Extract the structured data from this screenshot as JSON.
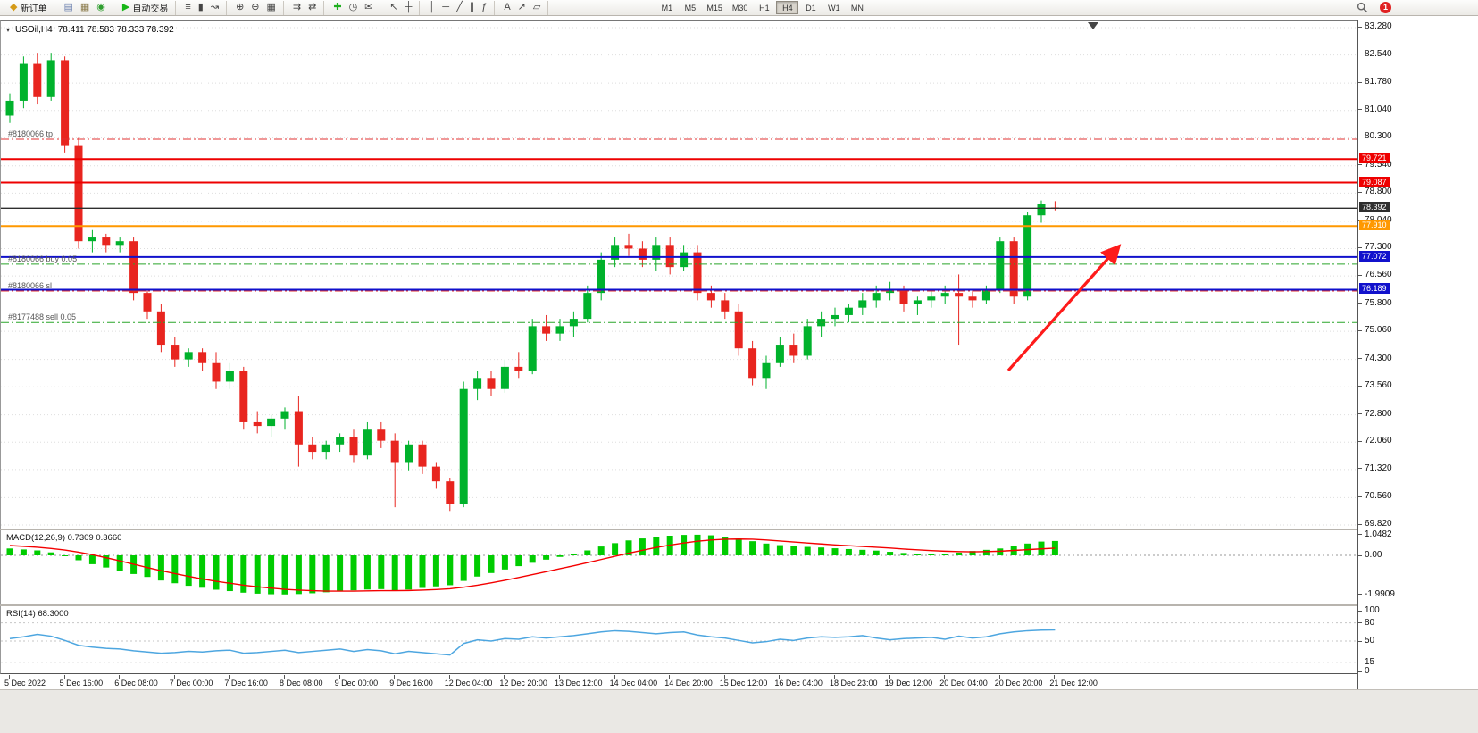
{
  "toolbar": {
    "groups": [
      {
        "items": [
          {
            "name": "new-order-button",
            "glyph": "◆",
            "glyph_color": "#d49a16",
            "label": "新订单"
          }
        ]
      },
      {
        "items": [
          {
            "name": "charts-window-button",
            "glyph": "▤",
            "glyph_color": "#6a7fae"
          },
          {
            "name": "profiles-button",
            "glyph": "▦",
            "glyph_color": "#8a7a4a"
          },
          {
            "name": "market-watch-button",
            "glyph": "◉",
            "glyph_color": "#2f9e2f"
          }
        ]
      },
      {
        "items": [
          {
            "name": "auto-trading-button",
            "glyph": "▶",
            "glyph_color": "#17b617",
            "label": "自动交易"
          }
        ]
      },
      {
        "items": [
          {
            "name": "bar-chart-button",
            "glyph": "≡"
          },
          {
            "name": "candlestick-chart-button",
            "glyph": "▮"
          },
          {
            "name": "line-chart-button",
            "glyph": "↝"
          }
        ]
      },
      {
        "items": [
          {
            "name": "zoom-in-button",
            "glyph": "⊕"
          },
          {
            "name": "zoom-out-button",
            "glyph": "⊖"
          },
          {
            "name": "tile-windows-button",
            "glyph": "▦"
          }
        ]
      },
      {
        "items": [
          {
            "name": "auto-scroll-button",
            "glyph": "⇉"
          },
          {
            "name": "chart-shift-button",
            "glyph": "⇄"
          }
        ]
      },
      {
        "items": [
          {
            "name": "indicators-button",
            "glyph": "✚",
            "glyph_color": "#1faf1f"
          },
          {
            "name": "periods-button",
            "glyph": "◷"
          },
          {
            "name": "alerts-button",
            "glyph": "✉"
          }
        ]
      },
      {
        "items": [
          {
            "name": "cursor-button",
            "glyph": "↖"
          },
          {
            "name": "crosshair-button",
            "glyph": "┼"
          }
        ]
      },
      {
        "items": [
          {
            "name": "vertical-line-button",
            "glyph": "│"
          },
          {
            "name": "horizontal-line-button",
            "glyph": "─"
          },
          {
            "name": "trendline-button",
            "glyph": "╱"
          },
          {
            "name": "channel-button",
            "glyph": "∥"
          },
          {
            "name": "fibonacci-button",
            "glyph": "ƒ"
          }
        ]
      },
      {
        "items": [
          {
            "name": "text-tool-button",
            "glyph": "A"
          },
          {
            "name": "arrow-tool-button",
            "glyph": "↗"
          },
          {
            "name": "shapes-button",
            "glyph": "▱"
          }
        ]
      }
    ],
    "timeframes": [
      "M1",
      "M5",
      "M15",
      "M30",
      "H1",
      "H4",
      "D1",
      "W1",
      "MN"
    ],
    "active_timeframe": "H4",
    "notification_badge": "1"
  },
  "chart_data": {
    "type": "candlestick",
    "title": "USOil,H4",
    "ohlc_header": "78.411 78.583 78.333 78.392",
    "ylim": [
      69.82,
      83.28
    ],
    "up_color": "#00b22c",
    "down_color": "#e8251f",
    "price_axis_labels": [
      "83.280",
      "82.540",
      "81.780",
      "81.040",
      "80.300",
      "79.540",
      "78.800",
      "78.040",
      "77.300",
      "76.560",
      "75.800",
      "75.060",
      "74.300",
      "73.560",
      "72.800",
      "72.060",
      "71.320",
      "70.560",
      "69.820"
    ],
    "x_labels": [
      "5 Dec 2022",
      "5 Dec 16:00",
      "6 Dec 08:00",
      "7 Dec 00:00",
      "7 Dec 16:00",
      "8 Dec 08:00",
      "9 Dec 00:00",
      "9 Dec 16:00",
      "12 Dec 04:00",
      "12 Dec 20:00",
      "13 Dec 12:00",
      "14 Dec 04:00",
      "14 Dec 20:00",
      "15 Dec 12:00",
      "16 Dec 04:00",
      "18 Dec 23:00",
      "19 Dec 12:00",
      "20 Dec 04:00",
      "20 Dec 20:00",
      "21 Dec 12:00"
    ],
    "x_label_every": 4,
    "ohlc": [
      [
        80.9,
        81.5,
        80.7,
        81.3
      ],
      [
        81.3,
        82.5,
        81.1,
        82.3
      ],
      [
        82.3,
        82.6,
        81.2,
        81.4
      ],
      [
        81.4,
        82.6,
        81.3,
        82.4
      ],
      [
        82.4,
        82.5,
        79.9,
        80.1
      ],
      [
        80.1,
        80.3,
        77.3,
        77.5
      ],
      [
        77.5,
        77.8,
        77.2,
        77.6
      ],
      [
        77.6,
        77.7,
        77.2,
        77.4
      ],
      [
        77.4,
        77.6,
        77.2,
        77.5
      ],
      [
        77.5,
        77.6,
        75.9,
        76.1
      ],
      [
        76.1,
        76.2,
        75.4,
        75.6
      ],
      [
        75.6,
        75.8,
        74.5,
        74.7
      ],
      [
        74.7,
        74.9,
        74.1,
        74.3
      ],
      [
        74.3,
        74.6,
        74.1,
        74.5
      ],
      [
        74.5,
        74.6,
        74.0,
        74.2
      ],
      [
        74.2,
        74.5,
        73.5,
        73.7
      ],
      [
        73.7,
        74.2,
        73.5,
        74.0
      ],
      [
        74.0,
        74.1,
        72.4,
        72.6
      ],
      [
        72.6,
        72.9,
        72.3,
        72.5
      ],
      [
        72.5,
        72.8,
        72.2,
        72.7
      ],
      [
        72.7,
        73.0,
        72.4,
        72.9
      ],
      [
        72.9,
        73.3,
        71.4,
        72.0
      ],
      [
        72.0,
        72.2,
        71.6,
        71.8
      ],
      [
        71.8,
        72.1,
        71.6,
        72.0
      ],
      [
        72.0,
        72.3,
        71.8,
        72.2
      ],
      [
        72.2,
        72.4,
        71.5,
        71.7
      ],
      [
        71.7,
        72.6,
        71.6,
        72.4
      ],
      [
        72.4,
        72.6,
        71.9,
        72.1
      ],
      [
        72.1,
        72.3,
        70.3,
        71.5
      ],
      [
        71.5,
        72.1,
        71.3,
        72.0
      ],
      [
        72.0,
        72.1,
        71.2,
        71.4
      ],
      [
        71.4,
        71.5,
        70.8,
        71.0
      ],
      [
        71.0,
        71.1,
        70.2,
        70.4
      ],
      [
        70.4,
        73.7,
        70.3,
        73.5
      ],
      [
        73.5,
        74.0,
        73.2,
        73.8
      ],
      [
        73.8,
        74.0,
        73.3,
        73.5
      ],
      [
        73.5,
        74.3,
        73.4,
        74.1
      ],
      [
        74.1,
        74.5,
        73.8,
        74.0
      ],
      [
        74.0,
        75.4,
        73.9,
        75.2
      ],
      [
        75.2,
        75.5,
        74.8,
        75.0
      ],
      [
        75.0,
        75.4,
        74.8,
        75.2
      ],
      [
        75.2,
        75.6,
        74.9,
        75.4
      ],
      [
        75.4,
        76.3,
        75.3,
        76.1
      ],
      [
        76.1,
        77.2,
        75.9,
        77.0
      ],
      [
        77.0,
        77.6,
        76.8,
        77.4
      ],
      [
        77.4,
        77.7,
        77.1,
        77.3
      ],
      [
        77.3,
        77.5,
        76.8,
        77.0
      ],
      [
        77.0,
        77.6,
        76.7,
        77.4
      ],
      [
        77.4,
        77.6,
        76.6,
        76.8
      ],
      [
        76.8,
        77.4,
        76.7,
        77.2
      ],
      [
        77.2,
        77.4,
        75.9,
        76.1
      ],
      [
        76.1,
        76.3,
        75.7,
        75.9
      ],
      [
        75.9,
        76.1,
        75.4,
        75.6
      ],
      [
        75.6,
        75.8,
        74.4,
        74.6
      ],
      [
        74.6,
        74.8,
        73.6,
        73.8
      ],
      [
        73.8,
        74.4,
        73.5,
        74.2
      ],
      [
        74.2,
        74.9,
        74.1,
        74.7
      ],
      [
        74.7,
        75.0,
        74.2,
        74.4
      ],
      [
        74.4,
        75.4,
        74.3,
        75.2
      ],
      [
        75.2,
        75.6,
        74.9,
        75.4
      ],
      [
        75.4,
        75.7,
        75.2,
        75.5
      ],
      [
        75.5,
        75.8,
        75.3,
        75.7
      ],
      [
        75.7,
        76.1,
        75.5,
        75.9
      ],
      [
        75.9,
        76.3,
        75.7,
        76.1
      ],
      [
        76.1,
        76.4,
        75.9,
        76.2
      ],
      [
        76.2,
        76.3,
        75.6,
        75.8
      ],
      [
        75.8,
        76.0,
        75.5,
        75.9
      ],
      [
        75.9,
        76.2,
        75.7,
        76.0
      ],
      [
        76.0,
        76.3,
        75.8,
        76.1
      ],
      [
        76.1,
        76.6,
        74.7,
        76.0
      ],
      [
        76.0,
        76.2,
        75.7,
        75.9
      ],
      [
        75.9,
        76.3,
        75.8,
        76.2
      ],
      [
        76.2,
        77.6,
        76.1,
        77.5
      ],
      [
        77.5,
        77.6,
        75.8,
        76.0
      ],
      [
        76.0,
        78.3,
        75.9,
        78.2
      ],
      [
        78.2,
        78.6,
        78.0,
        78.5
      ],
      [
        78.411,
        78.583,
        78.333,
        78.392
      ]
    ],
    "hlines": [
      {
        "price": 79.721,
        "color": "#ee0000",
        "style": "solid",
        "width": 2,
        "tag": "79.721"
      },
      {
        "price": 79.087,
        "color": "#ee0000",
        "style": "solid",
        "width": 2,
        "tag": "79.087"
      },
      {
        "price": 78.392,
        "color": "#2e2e2e",
        "style": "solid",
        "width": 1.4,
        "tag": "78.392",
        "tag_bg": "#2e2e2e"
      },
      {
        "price": 77.91,
        "color": "#ff9800",
        "style": "solid",
        "width": 2,
        "tag": "77.910"
      },
      {
        "price": 77.072,
        "color": "#1111cc",
        "style": "solid",
        "width": 2,
        "tag": "77.072"
      },
      {
        "price": 76.189,
        "color": "#1111cc",
        "style": "solid",
        "width": 2,
        "tag": "76.189"
      },
      {
        "price": 80.26,
        "color": "#e03030",
        "style": "dashdot",
        "width": 1,
        "label": "#8180066 tp"
      },
      {
        "price": 76.88,
        "color": "#2aa52a",
        "style": "dashdot",
        "width": 1,
        "label": "#8180066 buy 0.05"
      },
      {
        "price": 76.15,
        "color": "#e03030",
        "style": "dashdot",
        "width": 1,
        "label": "#8180066 sl"
      },
      {
        "price": 75.3,
        "color": "#2aa52a",
        "style": "dashdot",
        "width": 1,
        "label": "#8177488 sell 0.05"
      }
    ],
    "annotations": {
      "arrow": {
        "from": [
          1128,
          392
        ],
        "to": [
          1250,
          255
        ],
        "color": "#fe1b1b"
      },
      "shift_marker_x": 1223
    },
    "macd": {
      "label": "MACD(12,26,9) 0.7309 0.3660",
      "axis_labels": [
        "1.0482",
        "0.00",
        "-1.9909"
      ],
      "hist_color": "#00cc00",
      "signal_color": "#f40000",
      "histogram": [
        0.35,
        0.3,
        0.25,
        0.15,
        0.0,
        -0.25,
        -0.45,
        -0.62,
        -0.78,
        -0.95,
        -1.1,
        -1.28,
        -1.42,
        -1.55,
        -1.65,
        -1.75,
        -1.82,
        -1.9,
        -1.95,
        -1.98,
        -1.99,
        -1.97,
        -1.93,
        -1.88,
        -1.82,
        -1.78,
        -1.74,
        -1.72,
        -1.8,
        -1.74,
        -1.66,
        -1.58,
        -1.52,
        -1.3,
        -1.08,
        -0.9,
        -0.72,
        -0.55,
        -0.38,
        -0.22,
        -0.08,
        0.08,
        0.25,
        0.45,
        0.62,
        0.76,
        0.86,
        0.94,
        1.0,
        1.04,
        1.05,
        1.02,
        0.95,
        0.85,
        0.72,
        0.6,
        0.52,
        0.47,
        0.43,
        0.4,
        0.36,
        0.32,
        0.28,
        0.24,
        0.18,
        0.12,
        0.08,
        0.07,
        0.09,
        0.14,
        0.22,
        0.28,
        0.35,
        0.48,
        0.6,
        0.7,
        0.7309
      ],
      "signal": [
        0.5,
        0.46,
        0.41,
        0.35,
        0.27,
        0.16,
        0.03,
        -0.12,
        -0.28,
        -0.45,
        -0.62,
        -0.78,
        -0.93,
        -1.07,
        -1.2,
        -1.32,
        -1.42,
        -1.52,
        -1.6,
        -1.67,
        -1.73,
        -1.77,
        -1.8,
        -1.82,
        -1.82,
        -1.82,
        -1.81,
        -1.8,
        -1.8,
        -1.79,
        -1.77,
        -1.74,
        -1.7,
        -1.62,
        -1.52,
        -1.4,
        -1.27,
        -1.13,
        -0.98,
        -0.83,
        -0.68,
        -0.53,
        -0.37,
        -0.21,
        -0.05,
        0.11,
        0.26,
        0.4,
        0.52,
        0.63,
        0.72,
        0.78,
        0.82,
        0.83,
        0.82,
        0.78,
        0.73,
        0.68,
        0.63,
        0.58,
        0.53,
        0.49,
        0.45,
        0.41,
        0.37,
        0.32,
        0.28,
        0.24,
        0.21,
        0.19,
        0.18,
        0.19,
        0.21,
        0.25,
        0.29,
        0.33,
        0.366
      ]
    },
    "rsi": {
      "label": "RSI(14) 68.3000",
      "axis_labels": [
        "100",
        "80",
        "50",
        "15",
        "0"
      ],
      "levels": [
        80,
        50,
        15
      ],
      "color": "#4da6e0",
      "values": [
        54,
        57,
        61,
        58,
        51,
        43,
        40,
        38,
        37,
        34,
        32,
        30,
        31,
        33,
        32,
        34,
        35,
        30,
        31,
        33,
        35,
        31,
        33,
        35,
        37,
        33,
        36,
        34,
        29,
        33,
        31,
        29,
        27,
        46,
        52,
        50,
        54,
        53,
        57,
        55,
        57,
        59,
        62,
        65,
        67,
        66,
        64,
        62,
        64,
        65,
        60,
        57,
        55,
        51,
        47,
        49,
        53,
        51,
        55,
        57,
        56,
        57,
        59,
        55,
        52,
        54,
        55,
        56,
        53,
        58,
        55,
        57,
        62,
        65,
        67,
        68,
        68.3
      ]
    }
  }
}
